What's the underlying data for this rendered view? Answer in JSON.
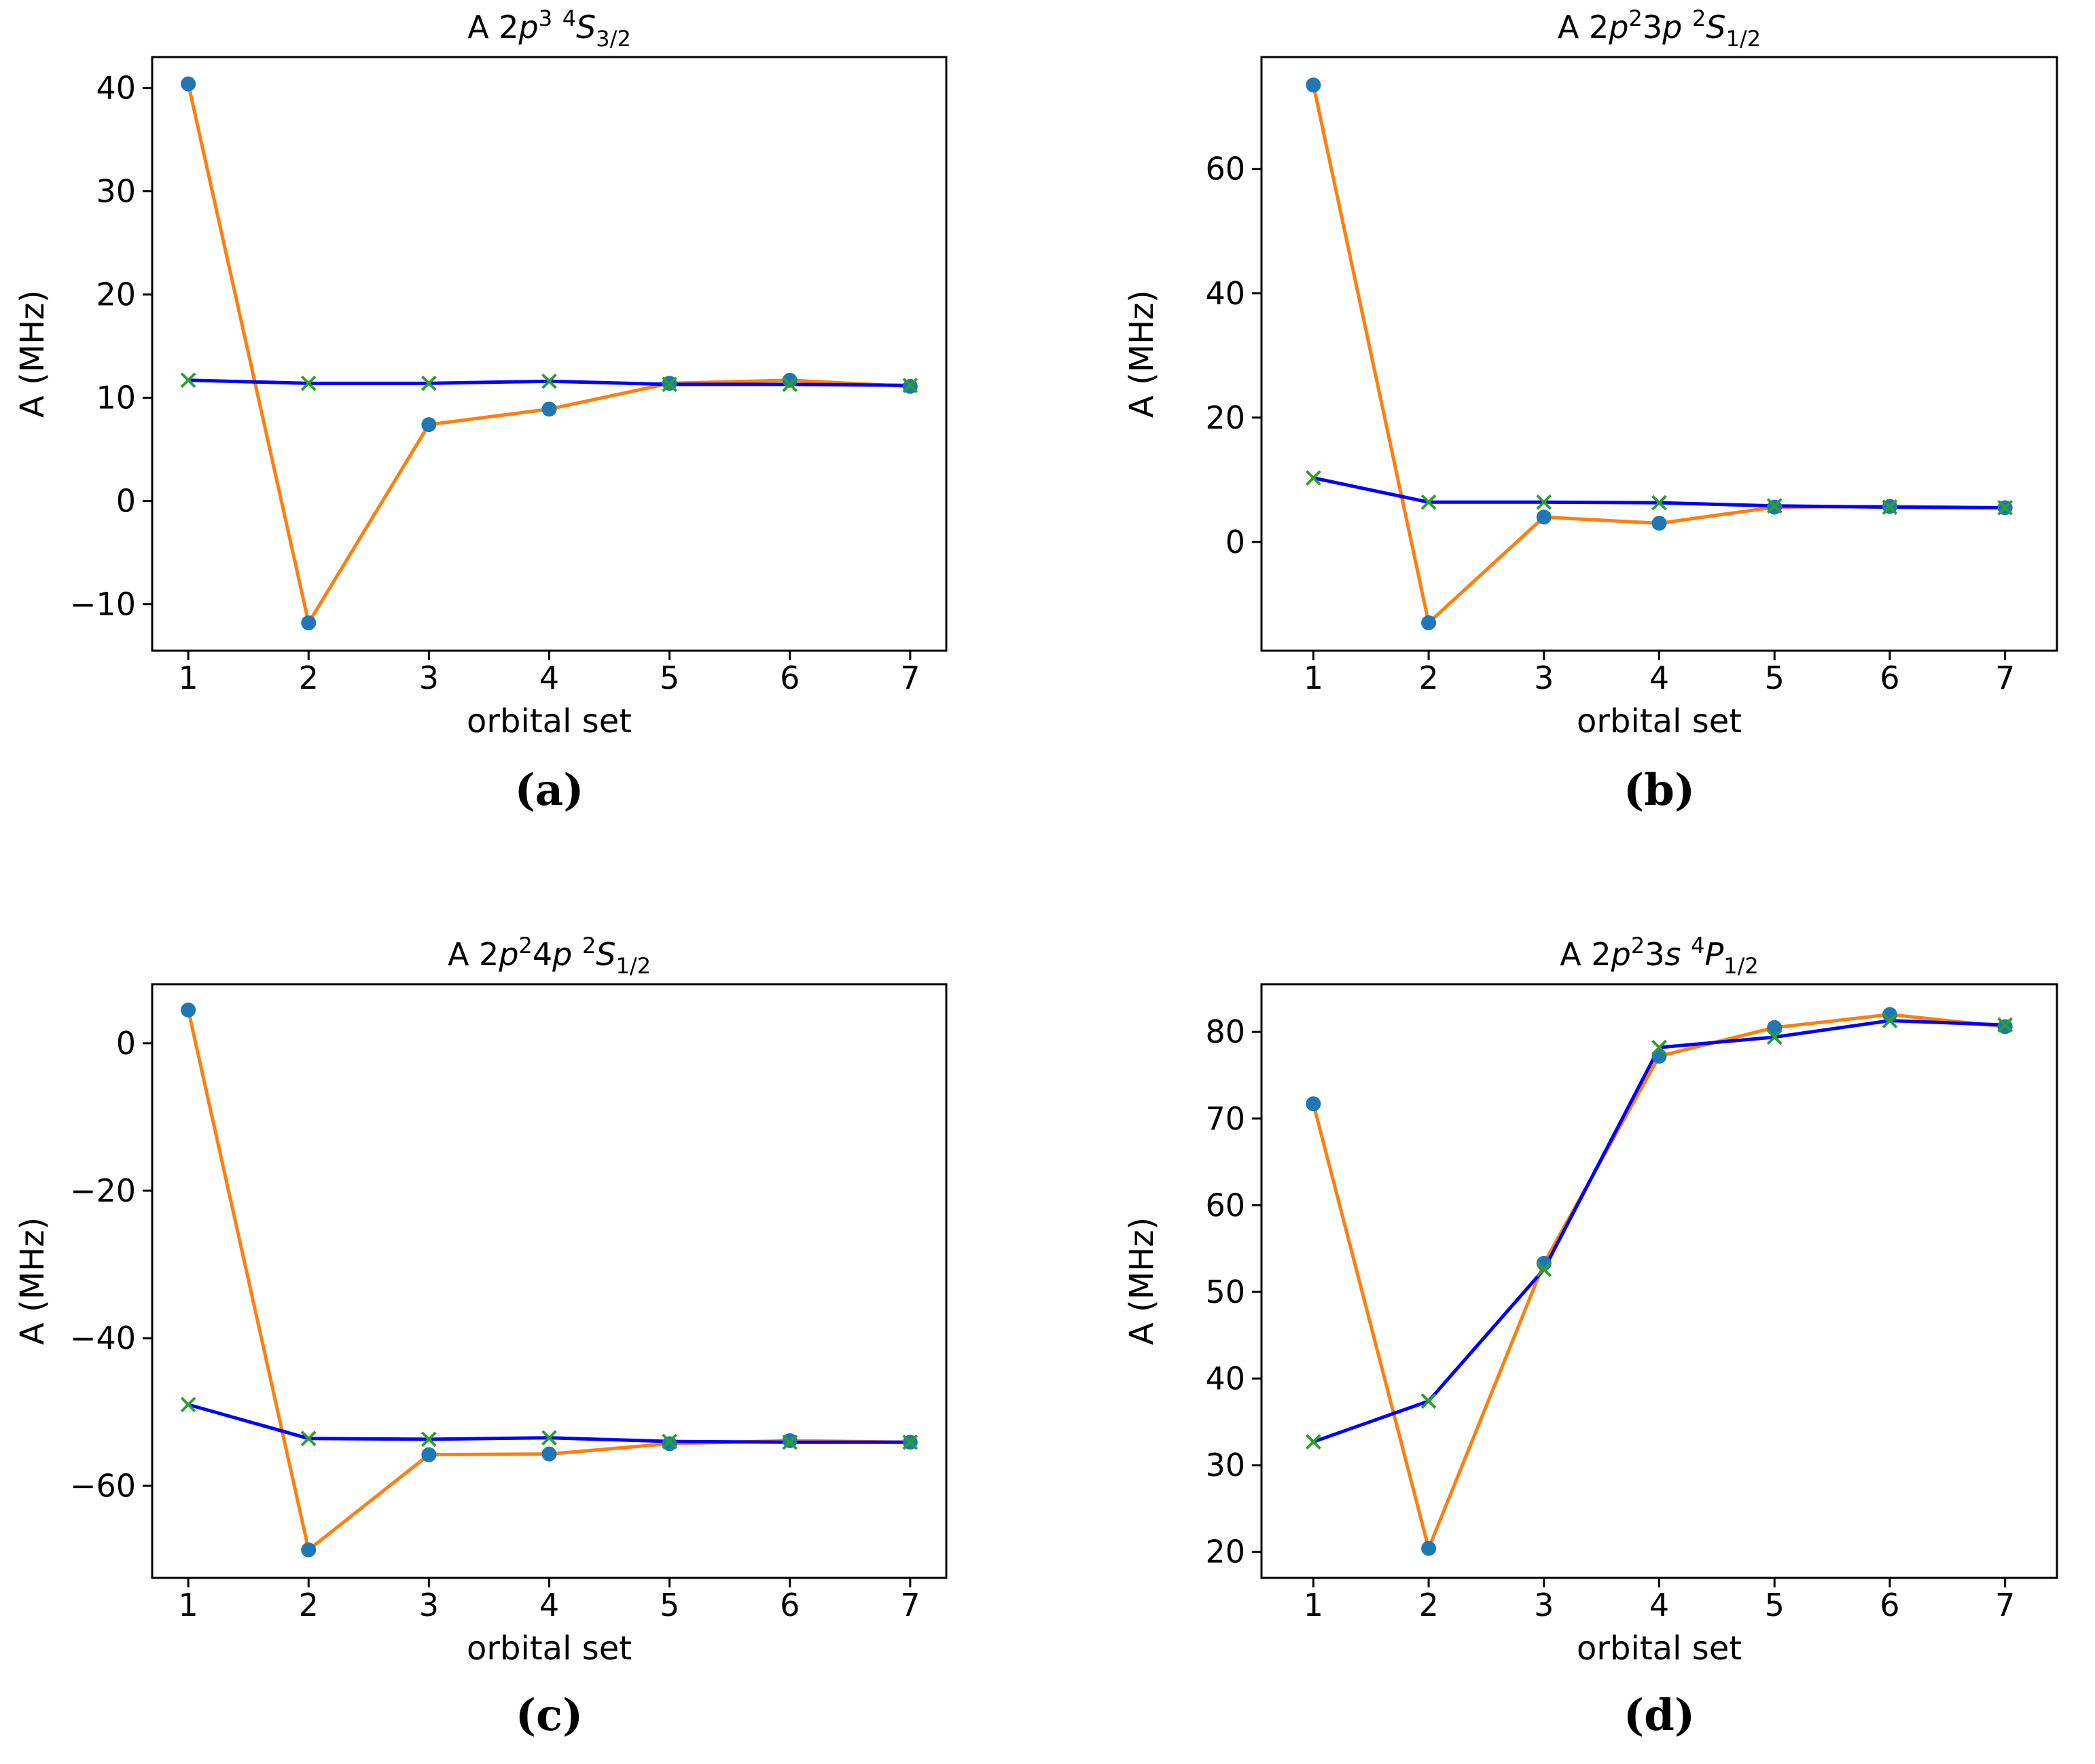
{
  "figure_colors": {
    "frame": "#000000",
    "series_a_line": "#ff7f0e",
    "series_a_marker": "#1f77b4",
    "series_b_line": "#0000ff",
    "series_b_marker": "#2ca02c"
  },
  "chart_data": [
    {
      "type": "line",
      "panel_label": "(a)",
      "title": {
        "prefix": "A 2",
        "parts": [
          "p",
          "3",
          " ",
          "4",
          "S",
          "3/2"
        ]
      },
      "title_plain": "A 2p3 4S3/2",
      "xlabel": "orbital set",
      "ylabel": "A (MHz)",
      "x": [
        1,
        2,
        3,
        4,
        5,
        6,
        7
      ],
      "xlim": [
        0.7,
        7.3
      ],
      "ylim": [
        -14.5,
        43.0
      ],
      "yticks": [
        -10,
        0,
        10,
        20,
        30,
        40
      ],
      "ytick_labels": [
        "−10",
        "0",
        "10",
        "20",
        "30",
        "40"
      ],
      "series": [
        {
          "name": "series-1",
          "marker": "circle",
          "values": [
            40.4,
            -11.8,
            7.4,
            8.9,
            11.4,
            11.7,
            11.1
          ]
        },
        {
          "name": "series-2",
          "marker": "x",
          "values": [
            11.7,
            11.4,
            11.4,
            11.6,
            11.3,
            11.3,
            11.2
          ]
        }
      ]
    },
    {
      "type": "line",
      "panel_label": "(b)",
      "title": {
        "prefix": "A 2",
        "parts": [
          "p",
          "2",
          "3",
          "p",
          " ",
          "2",
          "S",
          "1/2"
        ]
      },
      "title_plain": "A 2p23p 2S1/2",
      "xlabel": "orbital set",
      "ylabel": "A (MHz)",
      "x": [
        1,
        2,
        3,
        4,
        5,
        6,
        7
      ],
      "xlim": [
        0.55,
        7.45
      ],
      "ylim": [
        -17.5,
        78.0
      ],
      "yticks": [
        0,
        20,
        40,
        60
      ],
      "ytick_labels": [
        "0",
        "20",
        "40",
        "60"
      ],
      "series": [
        {
          "name": "series-1",
          "marker": "circle",
          "values": [
            73.5,
            -13.0,
            4.0,
            3.0,
            5.6,
            5.7,
            5.5
          ]
        },
        {
          "name": "series-2",
          "marker": "x",
          "values": [
            10.3,
            6.4,
            6.4,
            6.3,
            5.8,
            5.6,
            5.5
          ]
        }
      ]
    },
    {
      "type": "line",
      "panel_label": "(c)",
      "title": {
        "prefix": "A 2",
        "parts": [
          "p",
          "2",
          "4",
          "p",
          " ",
          "2",
          "S",
          "1/2"
        ]
      },
      "title_plain": "A 2p24p 2S1/2",
      "xlabel": "orbital set",
      "ylabel": "A (MHz)",
      "x": [
        1,
        2,
        3,
        4,
        5,
        6,
        7
      ],
      "xlim": [
        0.7,
        7.3
      ],
      "ylim": [
        -72.5,
        8.0
      ],
      "yticks": [
        -60,
        -40,
        -20,
        0
      ],
      "ytick_labels": [
        "−60",
        "−40",
        "−20",
        "0"
      ],
      "series": [
        {
          "name": "series-1",
          "marker": "circle",
          "values": [
            4.5,
            -68.7,
            -55.8,
            -55.7,
            -54.3,
            -53.9,
            -54.1
          ]
        },
        {
          "name": "series-2",
          "marker": "x",
          "values": [
            -49.0,
            -53.6,
            -53.7,
            -53.5,
            -54.0,
            -54.1,
            -54.1
          ]
        }
      ]
    },
    {
      "type": "line",
      "panel_label": "(d)",
      "title": {
        "prefix": "A 2",
        "parts": [
          "p",
          "2",
          "3",
          "s",
          " ",
          "4",
          "P",
          "1/2"
        ]
      },
      "title_plain": "A 2p23s 4P1/2",
      "xlabel": "orbital set",
      "ylabel": "A (MHz)",
      "x": [
        1,
        2,
        3,
        4,
        5,
        6,
        7
      ],
      "xlim": [
        0.55,
        7.45
      ],
      "ylim": [
        17.0,
        85.5
      ],
      "yticks": [
        20,
        30,
        40,
        50,
        60,
        70,
        80
      ],
      "ytick_labels": [
        "20",
        "30",
        "40",
        "50",
        "60",
        "70",
        "80"
      ],
      "series": [
        {
          "name": "series-1",
          "marker": "circle",
          "values": [
            71.7,
            20.4,
            53.3,
            77.2,
            80.5,
            82.0,
            80.6
          ]
        },
        {
          "name": "series-2",
          "marker": "x",
          "values": [
            32.7,
            37.4,
            52.6,
            78.2,
            79.4,
            81.3,
            80.8
          ]
        }
      ]
    }
  ]
}
